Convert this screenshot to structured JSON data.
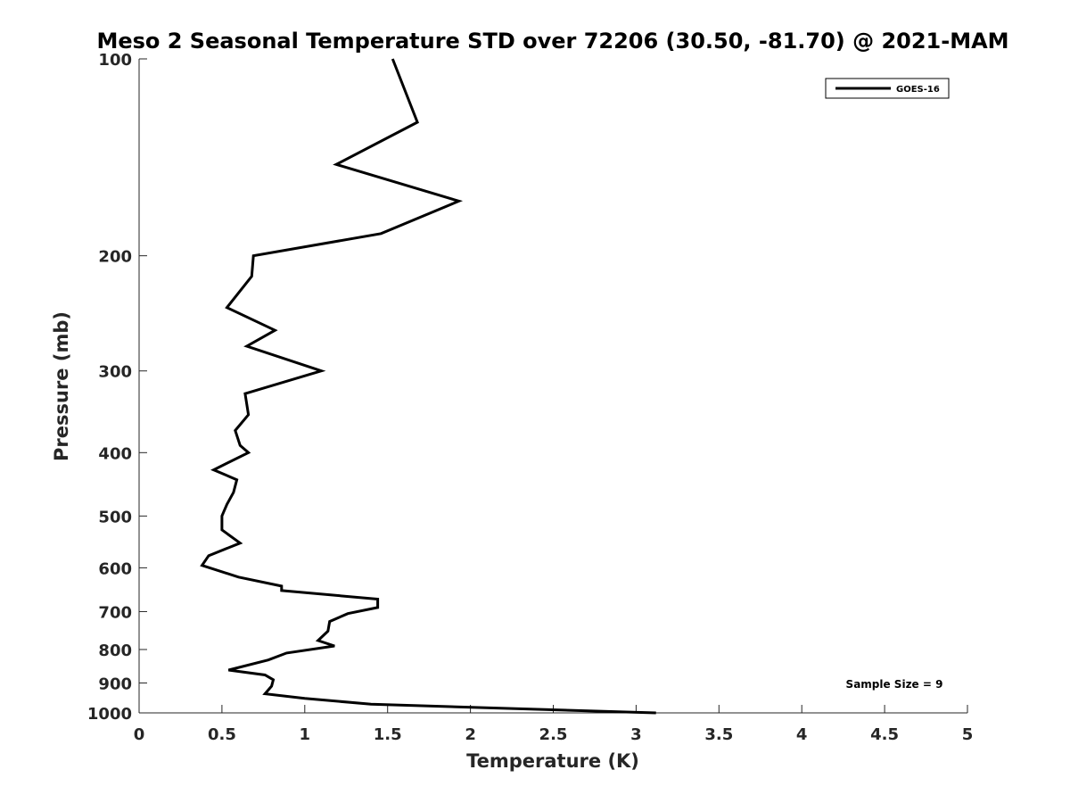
{
  "chart_data": {
    "type": "line",
    "title": "Meso 2 Seasonal Temperature STD over 72206 (30.50, -81.70) @ 2021-MAM",
    "xlabel": "Temperature (K)",
    "ylabel": "Pressure (mb)",
    "xlim": [
      0,
      5
    ],
    "ylim": [
      100,
      1000
    ],
    "y_scale": "log",
    "y_reversed": true,
    "grid": false,
    "legend_position": "top-right",
    "x_ticks": [
      "0",
      "0.5",
      "1",
      "1.5",
      "2",
      "2.5",
      "3",
      "3.5",
      "4",
      "4.5",
      "5"
    ],
    "y_ticks": [
      "100",
      "200",
      "300",
      "400",
      "500",
      "600",
      "700",
      "800",
      "900",
      "1000"
    ],
    "annotation": "Sample Size = 9",
    "colors": {
      "line": "#000000",
      "axis": "#262626"
    },
    "series": [
      {
        "name": "GOES-16",
        "points": [
          [
            1.53,
            100
          ],
          [
            1.68,
            125
          ],
          [
            1.19,
            145
          ],
          [
            1.93,
            165
          ],
          [
            1.46,
            185
          ],
          [
            0.69,
            200
          ],
          [
            0.68,
            215
          ],
          [
            0.53,
            240
          ],
          [
            0.82,
            260
          ],
          [
            0.65,
            275
          ],
          [
            1.1,
            300
          ],
          [
            0.64,
            325
          ],
          [
            0.66,
            350
          ],
          [
            0.58,
            370
          ],
          [
            0.61,
            390
          ],
          [
            0.66,
            400
          ],
          [
            0.45,
            425
          ],
          [
            0.59,
            440
          ],
          [
            0.57,
            460
          ],
          [
            0.53,
            480
          ],
          [
            0.5,
            500
          ],
          [
            0.5,
            525
          ],
          [
            0.61,
            550
          ],
          [
            0.42,
            575
          ],
          [
            0.38,
            595
          ],
          [
            0.6,
            620
          ],
          [
            0.86,
            640
          ],
          [
            0.86,
            650
          ],
          [
            1.44,
            670
          ],
          [
            1.44,
            690
          ],
          [
            1.26,
            705
          ],
          [
            1.15,
            725
          ],
          [
            1.14,
            750
          ],
          [
            1.08,
            775
          ],
          [
            1.18,
            790
          ],
          [
            0.89,
            810
          ],
          [
            0.78,
            830
          ],
          [
            0.54,
            860
          ],
          [
            0.76,
            875
          ],
          [
            0.81,
            890
          ],
          [
            0.8,
            910
          ],
          [
            0.76,
            935
          ],
          [
            1.0,
            950
          ],
          [
            1.4,
            970
          ],
          [
            3.12,
            1000
          ]
        ]
      }
    ]
  }
}
